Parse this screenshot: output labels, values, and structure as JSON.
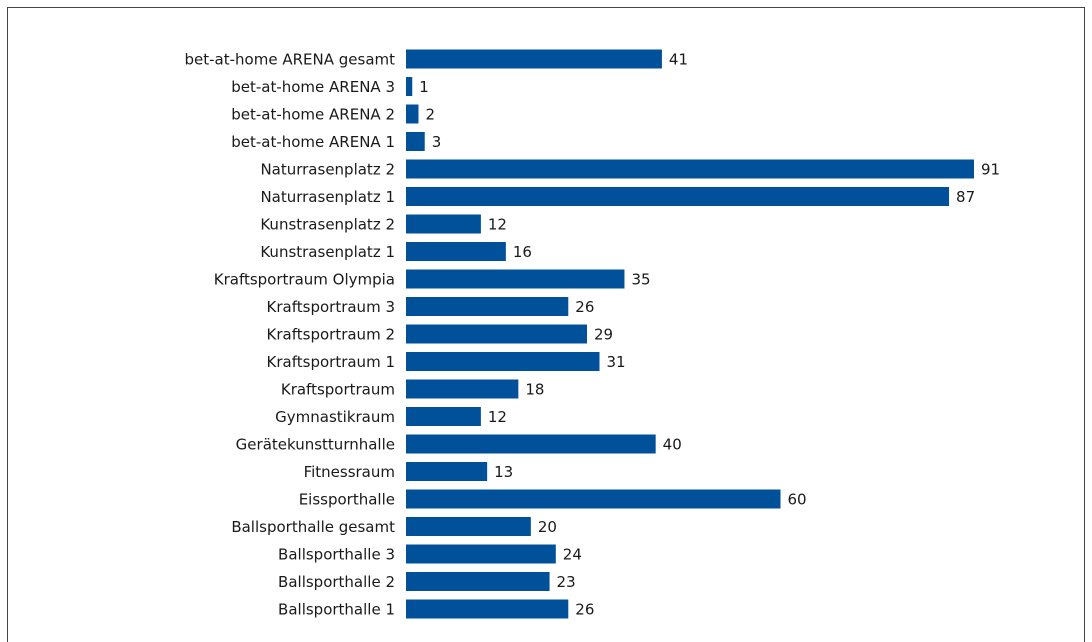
{
  "chart_data": {
    "type": "bar",
    "orientation": "horizontal",
    "color": "#00519a",
    "categories": [
      "bet-at-home ARENA gesamt",
      "bet-at-home ARENA 3",
      "bet-at-home ARENA 2",
      "bet-at-home ARENA 1",
      "Naturrasenplatz 2",
      "Naturrasenplatz 1",
      "Kunstrasenplatz 2",
      "Kunstrasenplatz 1",
      "Kraftsportraum Olympia",
      "Kraftsportraum 3",
      "Kraftsportraum 2",
      "Kraftsportraum 1",
      "Kraftsportraum",
      "Gymnastikraum",
      "Gerätekunstturnhalle",
      "Fitnessraum",
      "Eissporthalle",
      "Ballsporthalle gesamt",
      "Ballsporthalle 3",
      "Ballsporthalle 2",
      "Ballsporthalle 1"
    ],
    "values": [
      41,
      1,
      2,
      3,
      91,
      87,
      12,
      16,
      35,
      26,
      29,
      31,
      18,
      12,
      40,
      13,
      60,
      20,
      24,
      23,
      26
    ]
  }
}
